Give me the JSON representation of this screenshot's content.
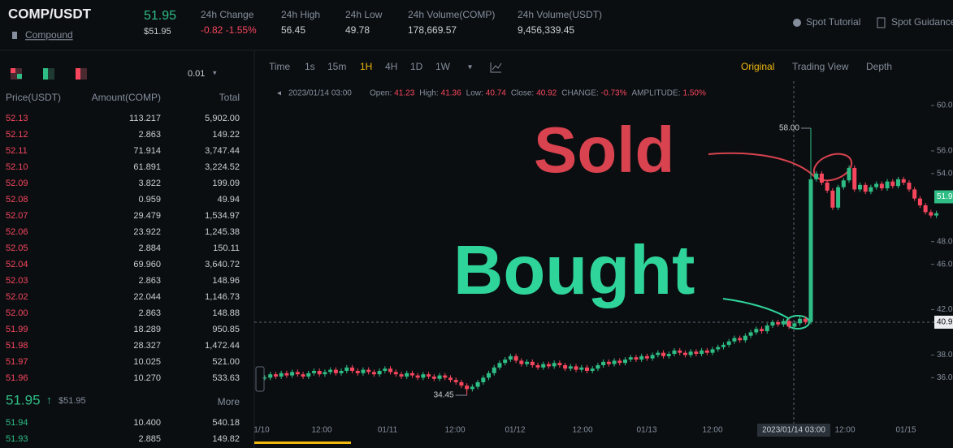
{
  "header": {
    "pair": "COMP/USDT",
    "coin": "Compound",
    "price": "51.95",
    "price_usd": "$51.95",
    "stats": [
      {
        "label": "24h Change",
        "value": "-0.82 -1.55%"
      },
      {
        "label": "24h High",
        "value": "56.45"
      },
      {
        "label": "24h Low",
        "value": "49.78"
      },
      {
        "label": "24h Volume(COMP)",
        "value": "178,669.57"
      },
      {
        "label": "24h Volume(USDT)",
        "value": "9,456,339.45"
      }
    ],
    "links": [
      "Spot Tutorial",
      "Spot Guidance"
    ]
  },
  "order_book": {
    "precision": "0.01",
    "columns": [
      "Price(USDT)",
      "Amount(COMP)",
      "Total"
    ],
    "asks": [
      [
        "52.13",
        "113.217",
        "5,902.00"
      ],
      [
        "52.12",
        "2.863",
        "149.22"
      ],
      [
        "52.11",
        "71.914",
        "3,747.44"
      ],
      [
        "52.10",
        "61.891",
        "3,224.52"
      ],
      [
        "52.09",
        "3.822",
        "199.09"
      ],
      [
        "52.08",
        "0.959",
        "49.94"
      ],
      [
        "52.07",
        "29.479",
        "1,534.97"
      ],
      [
        "52.06",
        "23.922",
        "1,245.38"
      ],
      [
        "52.05",
        "2.884",
        "150.11"
      ],
      [
        "52.04",
        "69.960",
        "3,640.72"
      ],
      [
        "52.03",
        "2.863",
        "148.96"
      ],
      [
        "52.02",
        "22.044",
        "1,146.73"
      ],
      [
        "52.00",
        "2.863",
        "148.88"
      ],
      [
        "51.99",
        "18.289",
        "950.85"
      ],
      [
        "51.98",
        "28.327",
        "1,472.44"
      ],
      [
        "51.97",
        "10.025",
        "521.00"
      ],
      [
        "51.96",
        "10.270",
        "533.63"
      ]
    ],
    "last_price": "51.95",
    "last_price_usd": "$51.95",
    "more": "More",
    "bids": [
      [
        "51.94",
        "10.400",
        "540.18"
      ],
      [
        "51.93",
        "2.885",
        "149.82"
      ]
    ]
  },
  "chart": {
    "intervals": [
      "Time",
      "1s",
      "15m",
      "1H",
      "4H",
      "1D",
      "1W"
    ],
    "views": [
      "Original",
      "Trading View",
      "Depth"
    ],
    "ohlc_date": "2023/01/14 03:00",
    "ohlc": [
      {
        "label": "Open:",
        "value": "41.23"
      },
      {
        "label": "High:",
        "value": "41.36"
      },
      {
        "label": "Low:",
        "value": "40.74"
      },
      {
        "label": "Close:",
        "value": "40.92"
      },
      {
        "label": "CHANGE:",
        "value": "-0.73%"
      },
      {
        "label": "AMPLITUDE:",
        "value": "1.50%"
      }
    ],
    "annotations": {
      "sold": "Sold",
      "bought": "Bought"
    },
    "high_label": "58.00",
    "low_label": "34.45",
    "ylim": [
      32.09,
      62.15
    ],
    "price_axis": [
      {
        "value": 60,
        "label": "60.00"
      },
      {
        "value": 56,
        "label": "56.00"
      },
      {
        "value": 54,
        "label": "54.00"
      },
      {
        "value": 48,
        "label": "48.00"
      },
      {
        "value": 46,
        "label": "46.00"
      },
      {
        "value": 42,
        "label": "42.00"
      },
      {
        "value": 38,
        "label": "38.00"
      },
      {
        "value": 36,
        "label": "36.00"
      }
    ],
    "time_axis": [
      "1/10",
      "12:00",
      "01/11",
      "12:00",
      "01/12",
      "12:00",
      "01/13",
      "12:00",
      "2023/01/14 03:00",
      "12:00",
      "01/15"
    ],
    "closes": [
      36.0,
      36.3,
      36.1,
      36.4,
      36.2,
      36.5,
      36.3,
      36.1,
      36.4,
      36.6,
      36.3,
      36.5,
      36.7,
      36.4,
      36.6,
      36.9,
      36.6,
      36.4,
      36.7,
      36.5,
      36.3,
      36.6,
      36.8,
      36.5,
      36.3,
      36.1,
      36.4,
      36.2,
      36.0,
      36.3,
      36.1,
      35.9,
      36.2,
      36.0,
      35.8,
      35.6,
      35.3,
      35.0,
      35.2,
      35.6,
      36.0,
      36.4,
      36.9,
      37.3,
      37.6,
      37.9,
      37.5,
      37.2,
      37.4,
      37.1,
      36.9,
      37.2,
      37.0,
      37.3,
      37.1,
      36.8,
      37.0,
      36.7,
      36.9,
      36.6,
      36.8,
      37.1,
      37.4,
      37.2,
      37.5,
      37.3,
      37.6,
      37.8,
      37.6,
      37.9,
      37.7,
      38.0,
      38.2,
      37.9,
      38.1,
      38.4,
      38.2,
      38.0,
      38.3,
      38.1,
      38.4,
      38.2,
      38.5,
      38.7,
      38.9,
      39.2,
      39.5,
      39.3,
      39.7,
      40.0,
      40.3,
      40.1,
      40.6,
      40.9,
      40.7,
      41.0,
      40.5,
      40.8,
      41.2,
      40.92,
      53.5,
      54.0,
      53.2,
      52.5,
      51.0,
      52.8,
      53.4,
      54.5,
      52.6,
      53.0,
      52.4,
      52.8,
      53.1,
      52.7,
      53.3,
      52.9,
      53.5,
      53.2,
      52.6,
      51.8,
      51.2,
      50.6,
      50.3,
      50.5
    ]
  }
}
